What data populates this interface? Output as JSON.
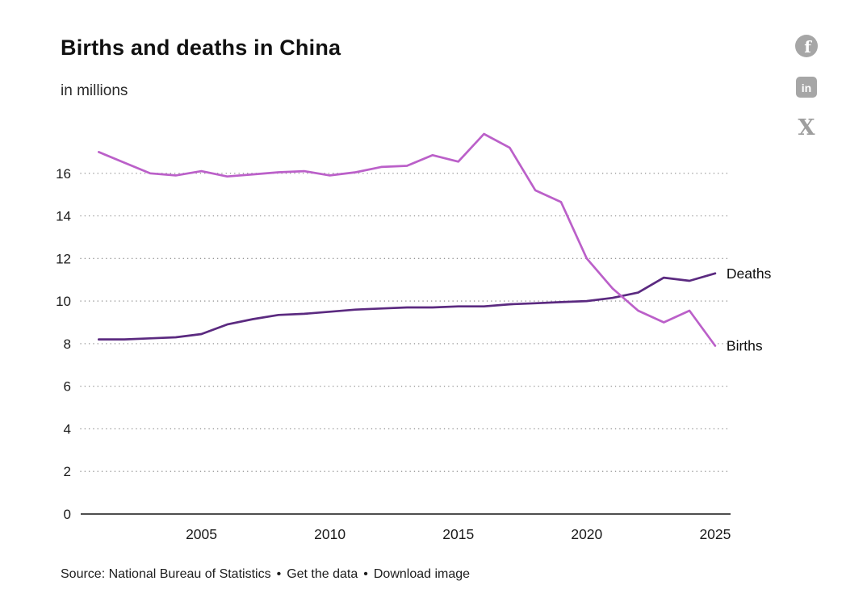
{
  "chart_data": {
    "type": "line",
    "title": "Births and deaths in China",
    "subtitle": "in millions",
    "xlabel": "",
    "ylabel": "",
    "x": [
      2001,
      2002,
      2003,
      2004,
      2005,
      2006,
      2007,
      2008,
      2009,
      2010,
      2011,
      2012,
      2013,
      2014,
      2015,
      2016,
      2017,
      2018,
      2019,
      2020,
      2021,
      2022,
      2023,
      2024,
      2025
    ],
    "series": [
      {
        "name": "Deaths",
        "color": "#5b2a80",
        "values": [
          8.2,
          8.2,
          8.25,
          8.3,
          8.45,
          8.9,
          9.15,
          9.35,
          9.4,
          9.5,
          9.6,
          9.65,
          9.7,
          9.7,
          9.75,
          9.75,
          9.85,
          9.9,
          9.95,
          10.0,
          10.15,
          10.4,
          11.1,
          10.95,
          11.3
        ]
      },
      {
        "name": "Births",
        "color": "#bb60c9",
        "values": [
          17.0,
          16.5,
          16.0,
          15.9,
          16.1,
          15.85,
          15.95,
          16.05,
          16.1,
          15.9,
          16.05,
          16.3,
          16.35,
          16.85,
          16.55,
          17.85,
          17.2,
          15.2,
          14.65,
          12.0,
          10.6,
          9.55,
          9.0,
          9.55,
          7.9
        ]
      }
    ],
    "xticks": [
      2005,
      2010,
      2015,
      2020,
      2025
    ],
    "yticks": [
      0,
      2,
      4,
      6,
      8,
      10,
      12,
      14,
      16
    ],
    "xlim": [
      2000.3,
      2025.6
    ],
    "ylim": [
      0,
      18
    ],
    "grid": "dotted-horizontal",
    "legend": "end-of-line-labels"
  },
  "social": {
    "facebook_glyph": "f",
    "linkedin_glyph": "in",
    "x_glyph": "X"
  },
  "footer": {
    "source": "Source: National Bureau of Statistics",
    "separator": "•",
    "get_data_label": "Get the data",
    "download_label": "Download image"
  }
}
